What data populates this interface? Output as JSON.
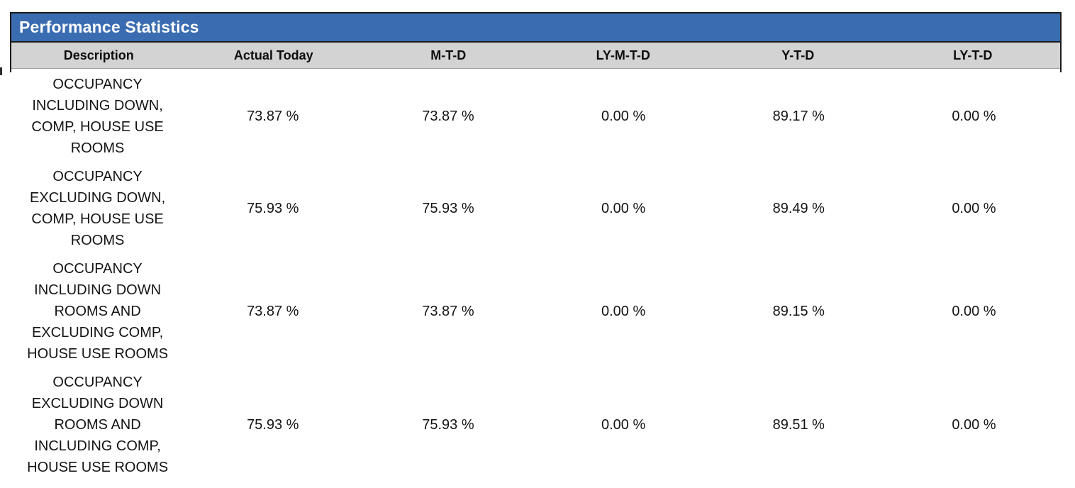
{
  "title": "Performance Statistics",
  "colors": {
    "title_bar_background": "#3a6cb1",
    "title_text": "#ffffff",
    "header_row_background": "#d3d3d3",
    "border": "#1b1b1b",
    "body_text": "#141414"
  },
  "table": {
    "columns": [
      "Description",
      "Actual Today",
      "M-T-D",
      "LY-M-T-D",
      "Y-T-D",
      "LY-T-D"
    ],
    "rows": [
      {
        "description": "OCCUPANCY\nINCLUDING DOWN,\nCOMP, HOUSE USE\nROOMS",
        "values": [
          "73.87 %",
          "73.87 %",
          "0.00 %",
          "89.17 %",
          "0.00 %"
        ]
      },
      {
        "description": "OCCUPANCY\nEXCLUDING DOWN,\nCOMP, HOUSE USE\nROOMS",
        "values": [
          "75.93 %",
          "75.93 %",
          "0.00 %",
          "89.49 %",
          "0.00 %"
        ]
      },
      {
        "description": "OCCUPANCY\nINCLUDING DOWN\nROOMS AND\nEXCLUDING COMP,\nHOUSE USE ROOMS",
        "values": [
          "73.87 %",
          "73.87 %",
          "0.00 %",
          "89.15 %",
          "0.00 %"
        ]
      },
      {
        "description": "OCCUPANCY\nEXCLUDING DOWN\nROOMS AND\nINCLUDING COMP,\nHOUSE USE ROOMS",
        "values": [
          "75.93 %",
          "75.93 %",
          "0.00 %",
          "89.51 %",
          "0.00 %"
        ]
      }
    ]
  }
}
